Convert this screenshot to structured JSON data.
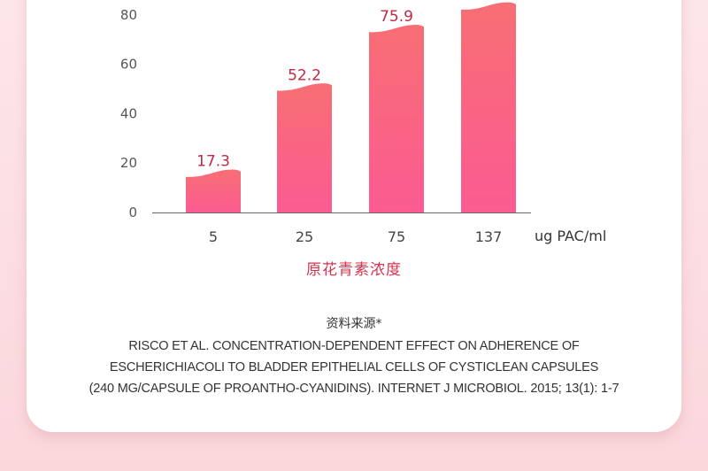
{
  "chart_data": {
    "type": "bar",
    "categories": [
      "5",
      "25",
      "75",
      "137"
    ],
    "values": [
      17.3,
      52.2,
      75.9,
      85
    ],
    "value_labels": [
      "17.3",
      "52.2",
      "75.9",
      ""
    ],
    "y_ticks": [
      "0",
      "20",
      "40",
      "60",
      "80"
    ],
    "ylim": [
      0,
      100
    ],
    "xunit": "ug PAC/ml",
    "xlabel": "原花青素浓度",
    "bar_color_top": "#f86e74",
    "bar_color_bottom": "#fb5b92",
    "value_label_color": "#c42840"
  },
  "source": {
    "title": "资料来源*",
    "lines": [
      "RISCO ET AL. CONCENTRATION-DEPENDENT EFFECT ON ADHERENCE OF",
      "ESCHERICHIACOLI TO BLADDER EPITHELIAL CELLS OF CYSTICLEAN CAPSULES",
      "(240 MG/CAPSULE OF PROANTHO-CYANIDINS). INTERNET J MICROBIOL. 2015; 13(1): 1-7"
    ]
  }
}
